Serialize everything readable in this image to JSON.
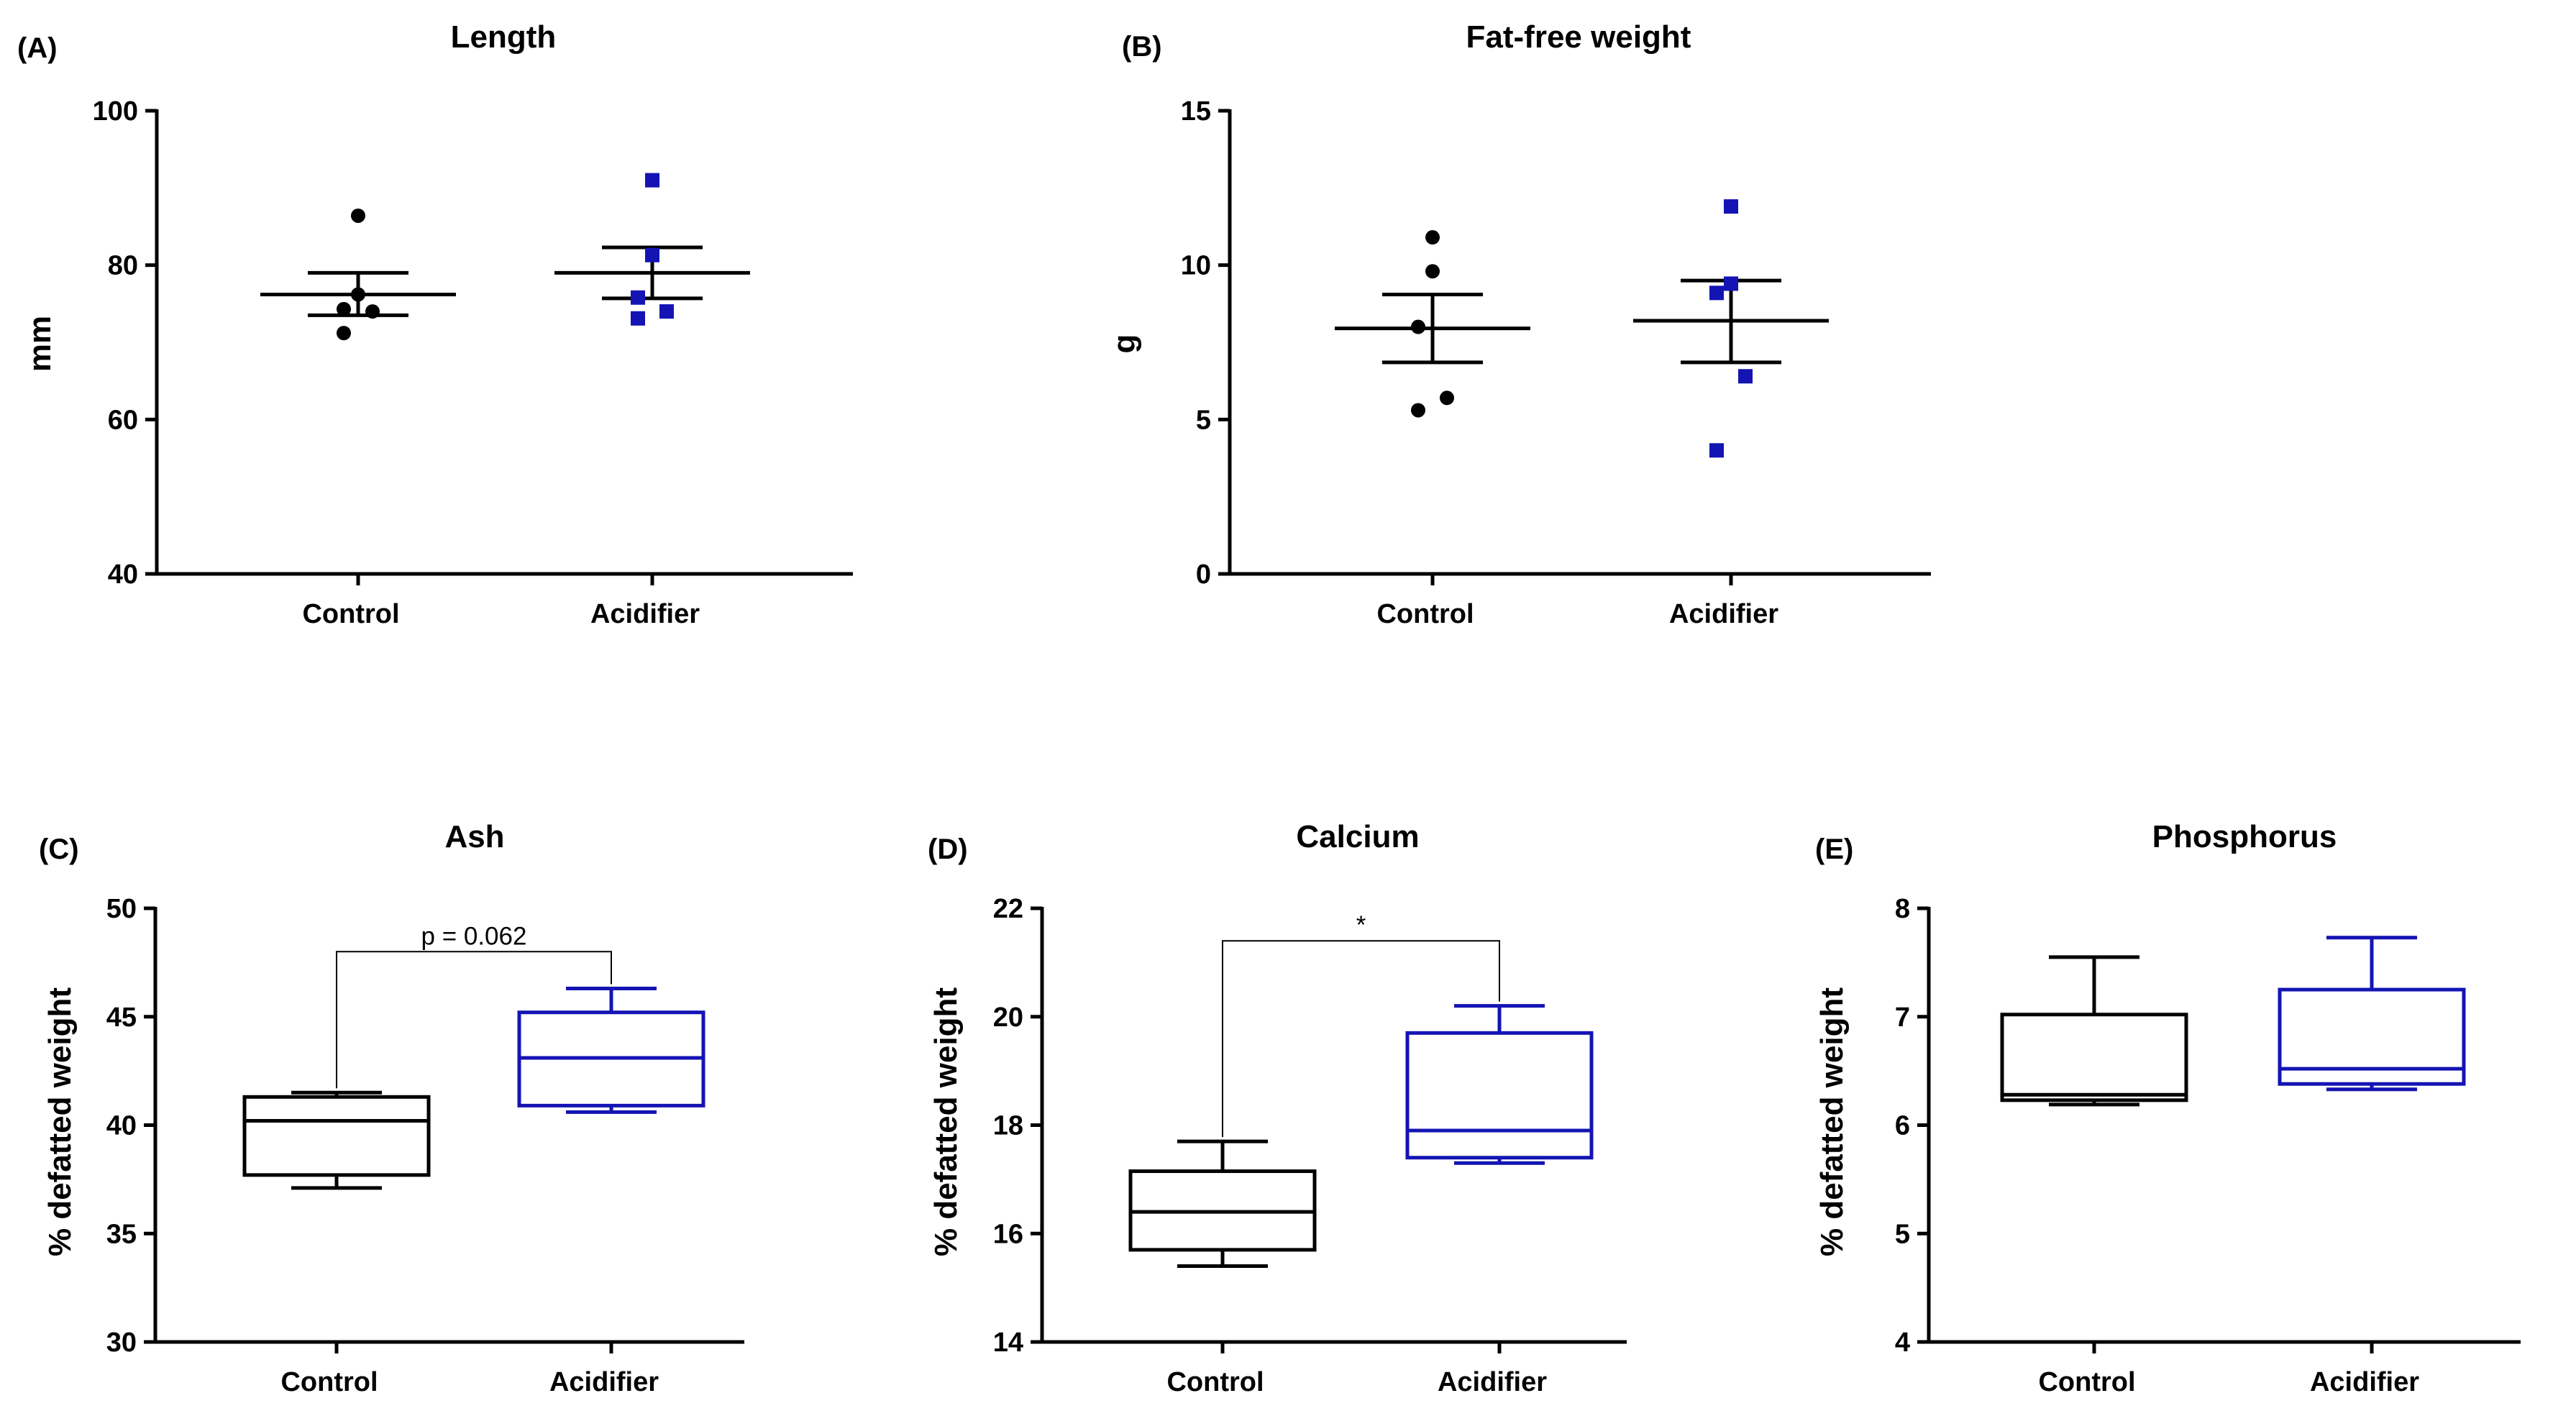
{
  "chart_data": [
    {
      "id": "A",
      "panel_label": "(A)",
      "type": "scatter",
      "title": "Length",
      "ylabel": "mm",
      "ylim": [
        40,
        100
      ],
      "yticks": [
        "40",
        "60",
        "80",
        "100"
      ],
      "categories": [
        "Control",
        "Acidifier"
      ],
      "series": [
        {
          "name": "Control",
          "color": "#000000",
          "marker": "circle",
          "values": [
            86.4,
            76.2,
            74.3,
            74.0,
            71.2
          ],
          "mean": 76.2,
          "sem_low": 73.5,
          "sem_high": 79.0
        },
        {
          "name": "Acidifier",
          "color": "#1414b4",
          "marker": "square",
          "values": [
            91.0,
            81.3,
            75.8,
            74.0,
            73.1
          ],
          "mean": 79.0,
          "sem_low": 75.7,
          "sem_high": 82.3
        }
      ]
    },
    {
      "id": "B",
      "panel_label": "(B)",
      "type": "scatter",
      "title": "Fat-free weight",
      "ylabel": "g",
      "ylim": [
        0,
        15
      ],
      "yticks": [
        "0",
        "5",
        "10",
        "15"
      ],
      "categories": [
        "Control",
        "Acidifier"
      ],
      "series": [
        {
          "name": "Control",
          "color": "#000000",
          "marker": "circle",
          "values": [
            10.9,
            9.8,
            8.0,
            5.7,
            5.3
          ],
          "mean": 7.95,
          "sem_low": 6.85,
          "sem_high": 9.05
        },
        {
          "name": "Acidifier",
          "color": "#1414b4",
          "marker": "square",
          "values": [
            11.9,
            9.4,
            9.1,
            6.4,
            4.0
          ],
          "mean": 8.2,
          "sem_low": 6.85,
          "sem_high": 9.5
        }
      ]
    },
    {
      "id": "C",
      "panel_label": "(C)",
      "type": "box",
      "title": "Ash",
      "ylabel": "% defatted weight",
      "ylim": [
        30,
        50
      ],
      "yticks": [
        "30",
        "35",
        "40",
        "45",
        "50"
      ],
      "categories": [
        "Control",
        "Acidifier"
      ],
      "boxes": [
        {
          "name": "Control",
          "color": "#000000",
          "min": 37.1,
          "q1": 37.7,
          "median": 40.2,
          "q3": 41.3,
          "max": 41.5
        },
        {
          "name": "Acidifier",
          "color": "#1414b4",
          "min": 40.6,
          "q1": 40.9,
          "median": 43.1,
          "q3": 45.2,
          "max": 46.3
        }
      ],
      "annotation": {
        "text": "p = 0.062",
        "bracket_y": 48.0
      }
    },
    {
      "id": "D",
      "panel_label": "(D)",
      "type": "box",
      "title": "Calcium",
      "ylabel": "% defatted weight",
      "ylim": [
        14,
        22
      ],
      "yticks": [
        "14",
        "16",
        "18",
        "20",
        "22"
      ],
      "categories": [
        "Control",
        "Acidifier"
      ],
      "boxes": [
        {
          "name": "Control",
          "color": "#000000",
          "min": 15.4,
          "q1": 15.7,
          "median": 16.4,
          "q3": 17.15,
          "max": 17.7
        },
        {
          "name": "Acidifier",
          "color": "#1414b4",
          "min": 17.3,
          "q1": 17.4,
          "median": 17.9,
          "q3": 19.7,
          "max": 20.2
        }
      ],
      "annotation": {
        "text": "*",
        "bracket_y": 21.4
      }
    },
    {
      "id": "E",
      "panel_label": "(E)",
      "type": "box",
      "title": "Phosphorus",
      "ylabel": "% defatted weight",
      "ylim": [
        4,
        8
      ],
      "yticks": [
        "4",
        "5",
        "6",
        "7",
        "8"
      ],
      "categories": [
        "Control",
        "Acidifier"
      ],
      "boxes": [
        {
          "name": "Control",
          "color": "#000000",
          "min": 6.19,
          "q1": 6.23,
          "median": 6.28,
          "q3": 7.02,
          "max": 7.55
        },
        {
          "name": "Acidifier",
          "color": "#1414b4",
          "min": 6.33,
          "q1": 6.38,
          "median": 6.52,
          "q3": 7.25,
          "max": 7.73
        }
      ]
    }
  ]
}
